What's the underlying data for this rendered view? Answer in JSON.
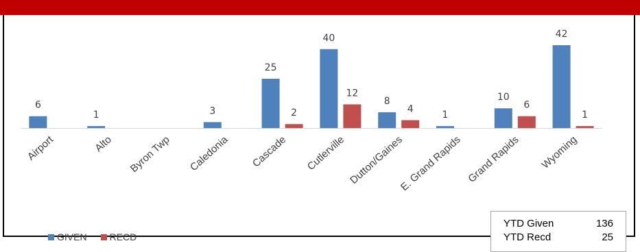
{
  "colors": {
    "banner": "#c00000",
    "given": "#4f81bd",
    "recd": "#c0504d"
  },
  "chart_data": {
    "type": "bar",
    "categories": [
      "Airport",
      "Alto",
      "Byron Twp",
      "Caledonia",
      "Cascade",
      "Cutlerville",
      "Dutton/Gaines",
      "E. Grand Rapids",
      "Grand Rapids",
      "Wyoming"
    ],
    "series": [
      {
        "name": "GIVEN",
        "values": [
          6,
          1,
          null,
          3,
          25,
          40,
          8,
          1,
          10,
          42
        ]
      },
      {
        "name": "RECD",
        "values": [
          null,
          null,
          null,
          null,
          2,
          12,
          4,
          null,
          6,
          1
        ]
      }
    ],
    "data_labels": true,
    "ylim": [
      0,
      42
    ],
    "grid": false,
    "legend": "bottom-left",
    "title": "",
    "xlabel": "",
    "ylabel": ""
  },
  "ytd": {
    "given_label": "YTD Given",
    "given_value": "136",
    "recd_label": "YTD Recd",
    "recd_value": "25"
  }
}
